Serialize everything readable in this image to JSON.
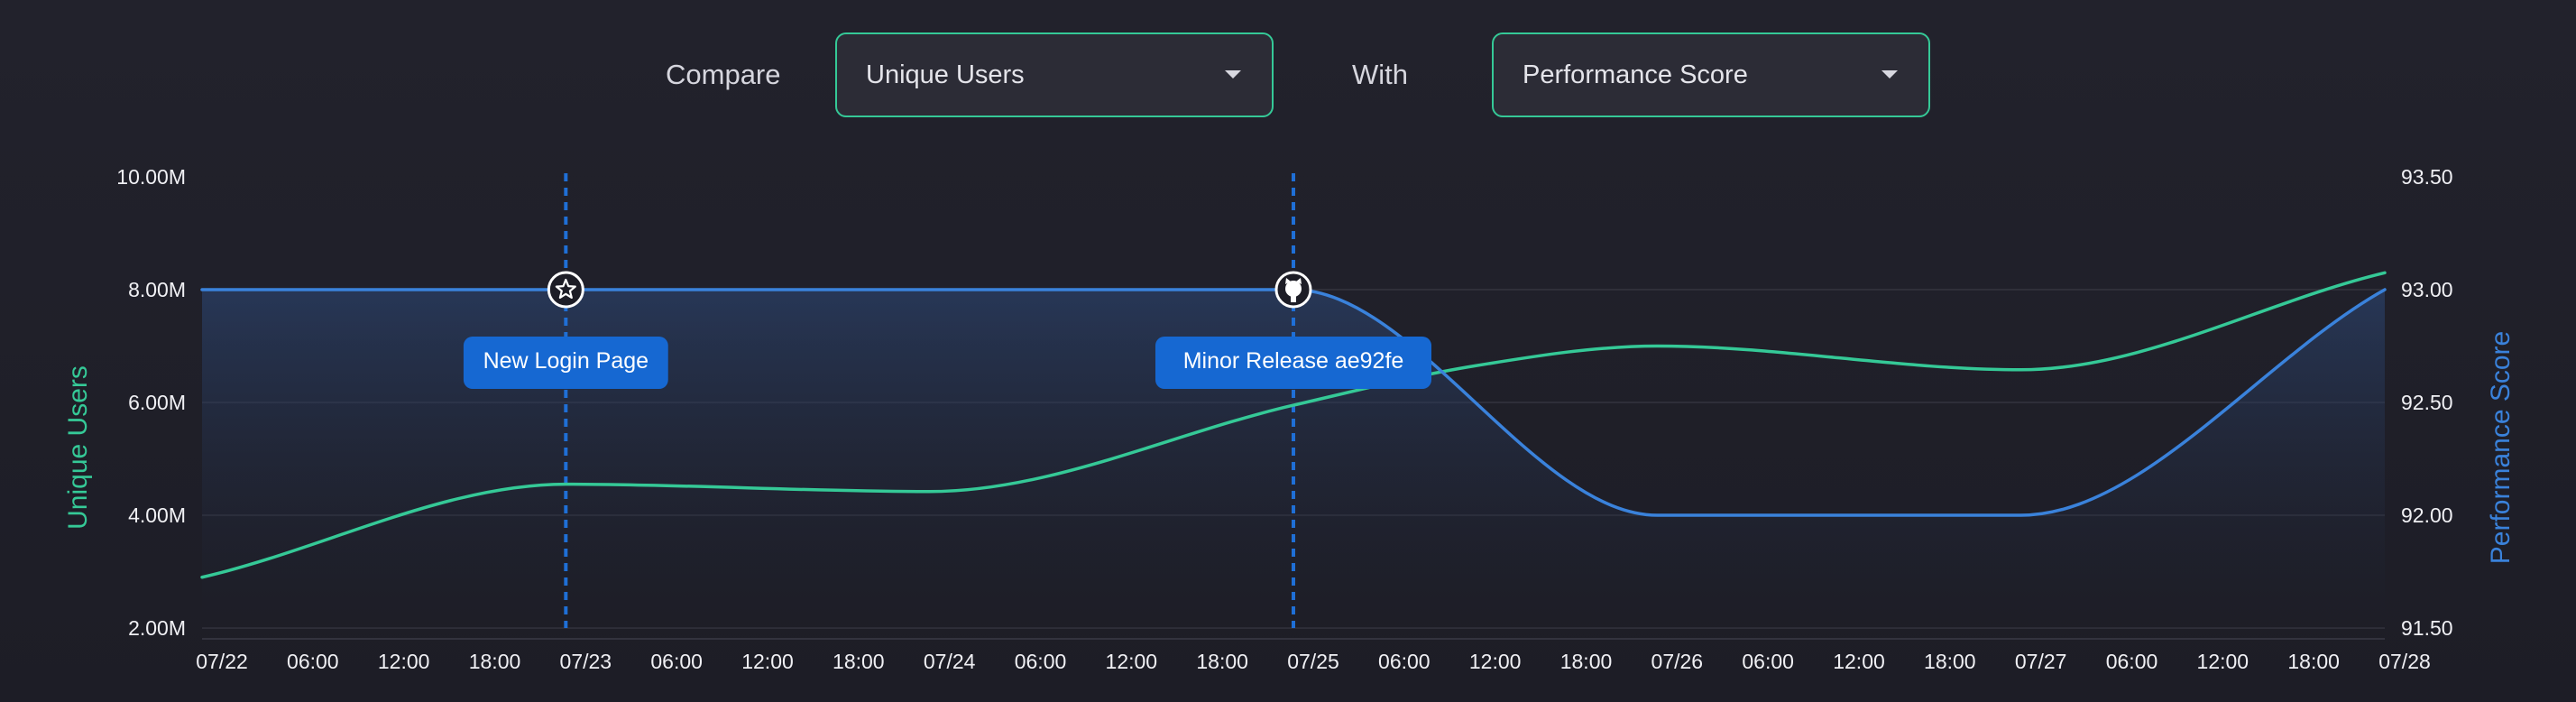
{
  "controls": {
    "compare_label": "Compare",
    "compare_value": "Unique Users",
    "with_label": "With",
    "with_value": "Performance Score",
    "accent_color": "#35c997"
  },
  "chart_data": {
    "type": "line",
    "x_ticks": [
      "07/22",
      "06:00",
      "12:00",
      "18:00",
      "07/23",
      "06:00",
      "12:00",
      "18:00",
      "07/24",
      "06:00",
      "12:00",
      "18:00",
      "07/25",
      "06:00",
      "12:00",
      "18:00",
      "07/26",
      "06:00",
      "12:00",
      "18:00",
      "07/27",
      "06:00",
      "12:00",
      "18:00",
      "07/28"
    ],
    "x_range": [
      "07/22 00:00",
      "07/28 00:00"
    ],
    "grid": true,
    "y_left": {
      "label": "Unique Users",
      "color": "#35c997",
      "ticks": [
        "10.00M",
        "8.00M",
        "6.00M",
        "4.00M",
        "2.00M"
      ],
      "range": [
        2000000,
        10000000
      ]
    },
    "y_right": {
      "label": "Performance Score",
      "color": "#3a82db",
      "ticks": [
        "93.50",
        "93.00",
        "92.50",
        "92.00",
        "91.50"
      ],
      "range": [
        91.5,
        93.5
      ]
    },
    "series": [
      {
        "name": "Unique Users",
        "axis": "left",
        "color": "#35c997",
        "x": [
          "07/22 00:00",
          "07/23 00:00",
          "07/24 00:00",
          "07/25 00:00",
          "07/25 12:00",
          "07/26 00:00",
          "07/27 00:00",
          "07/28 00:00"
        ],
        "y": [
          2900000,
          4550000,
          4420000,
          5950000,
          6650000,
          7000000,
          6580000,
          8300000
        ]
      },
      {
        "name": "Performance Score",
        "axis": "right",
        "color": "#3a82db",
        "area": true,
        "x": [
          "07/22 00:00",
          "07/25 00:00",
          "07/26 00:00",
          "07/27 00:00",
          "07/28 00:00"
        ],
        "y": [
          93.0,
          93.0,
          92.0,
          92.0,
          93.0
        ]
      }
    ],
    "annotations": [
      {
        "x": "07/23 00:00",
        "label": "New Login Page",
        "icon": "star-icon"
      },
      {
        "x": "07/25 00:00",
        "label": "Minor Release ae92fe",
        "icon": "github-icon"
      }
    ]
  }
}
